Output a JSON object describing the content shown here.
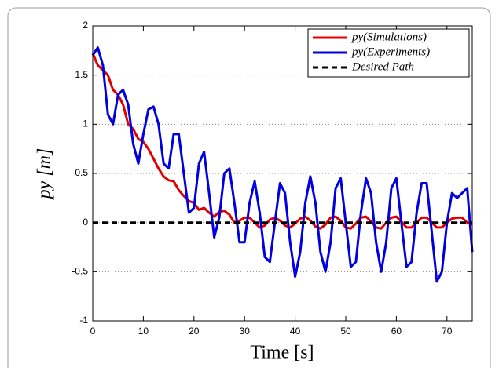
{
  "chart_data": {
    "type": "line",
    "xlabel": "Time [s]",
    "ylabel": "py [m]",
    "x": [
      0,
      1,
      2,
      3,
      4,
      5,
      6,
      7,
      8,
      9,
      10,
      11,
      12,
      13,
      14,
      15,
      16,
      17,
      18,
      19,
      20,
      21,
      22,
      23,
      24,
      25,
      26,
      27,
      28,
      29,
      30,
      31,
      32,
      33,
      34,
      35,
      36,
      37,
      38,
      39,
      40,
      41,
      42,
      43,
      44,
      45,
      46,
      47,
      48,
      49,
      50,
      51,
      52,
      53,
      54,
      55,
      56,
      57,
      58,
      59,
      60,
      61,
      62,
      63,
      64,
      65,
      66,
      67,
      68,
      69,
      70,
      71,
      72,
      73,
      74,
      75
    ],
    "series": [
      {
        "name": "py(Simulations)",
        "color": "#e00000",
        "linestyle": "solid",
        "values": [
          1.72,
          1.6,
          1.55,
          1.5,
          1.35,
          1.3,
          1.2,
          1.0,
          0.95,
          0.85,
          0.82,
          0.75,
          0.65,
          0.55,
          0.47,
          0.43,
          0.42,
          0.33,
          0.27,
          0.22,
          0.2,
          0.13,
          0.15,
          0.1,
          0.06,
          0.11,
          0.12,
          0.08,
          0.0,
          0.02,
          0.05,
          0.05,
          0.0,
          -0.05,
          -0.03,
          0.03,
          0.05,
          0.02,
          -0.03,
          -0.05,
          -0.01,
          0.04,
          0.06,
          0.02,
          -0.04,
          -0.06,
          -0.02,
          0.05,
          0.06,
          0.02,
          -0.05,
          -0.06,
          -0.01,
          0.05,
          0.06,
          0.01,
          -0.05,
          -0.06,
          0.0,
          0.05,
          0.06,
          0.01,
          -0.05,
          -0.05,
          0.0,
          0.05,
          0.05,
          0.0,
          -0.05,
          -0.05,
          0.0,
          0.04,
          0.05,
          0.05,
          0.0,
          -0.02
        ]
      },
      {
        "name": "py(Experiments)",
        "color": "#0000e0",
        "linestyle": "solid",
        "values": [
          1.7,
          1.78,
          1.6,
          1.1,
          1.0,
          1.3,
          1.35,
          1.2,
          0.8,
          0.6,
          0.9,
          1.15,
          1.18,
          1.0,
          0.6,
          0.55,
          0.9,
          0.9,
          0.5,
          0.1,
          0.15,
          0.6,
          0.72,
          0.3,
          -0.15,
          0.05,
          0.5,
          0.55,
          0.2,
          -0.2,
          -0.2,
          0.2,
          0.42,
          0.1,
          -0.35,
          -0.4,
          0.0,
          0.4,
          0.3,
          -0.2,
          -0.55,
          -0.3,
          0.2,
          0.47,
          0.2,
          -0.3,
          -0.5,
          -0.2,
          0.35,
          0.45,
          0.0,
          -0.45,
          -0.4,
          0.1,
          0.45,
          0.3,
          -0.2,
          -0.5,
          -0.2,
          0.35,
          0.45,
          0.0,
          -0.45,
          -0.4,
          0.1,
          0.4,
          0.4,
          -0.1,
          -0.6,
          -0.5,
          0.0,
          0.3,
          0.25,
          0.3,
          0.35,
          -0.3
        ]
      },
      {
        "name": "Desired Path",
        "color": "#000000",
        "linestyle": "dashed",
        "values": [
          0,
          0,
          0,
          0,
          0,
          0,
          0,
          0,
          0,
          0,
          0,
          0,
          0,
          0,
          0,
          0,
          0,
          0,
          0,
          0,
          0,
          0,
          0,
          0,
          0,
          0,
          0,
          0,
          0,
          0,
          0,
          0,
          0,
          0,
          0,
          0,
          0,
          0,
          0,
          0,
          0,
          0,
          0,
          0,
          0,
          0,
          0,
          0,
          0,
          0,
          0,
          0,
          0,
          0,
          0,
          0,
          0,
          0,
          0,
          0,
          0,
          0,
          0,
          0,
          0,
          0,
          0,
          0,
          0,
          0,
          0,
          0,
          0,
          0,
          0,
          0
        ]
      }
    ],
    "xlim": [
      0,
      75
    ],
    "xticks": [
      0,
      10,
      20,
      30,
      40,
      50,
      60,
      70
    ],
    "ylim": [
      -1,
      2
    ],
    "yticks": [
      -1,
      -0.5,
      0,
      0.5,
      1,
      1.5,
      2
    ],
    "grid": true,
    "legend": "upper right"
  }
}
